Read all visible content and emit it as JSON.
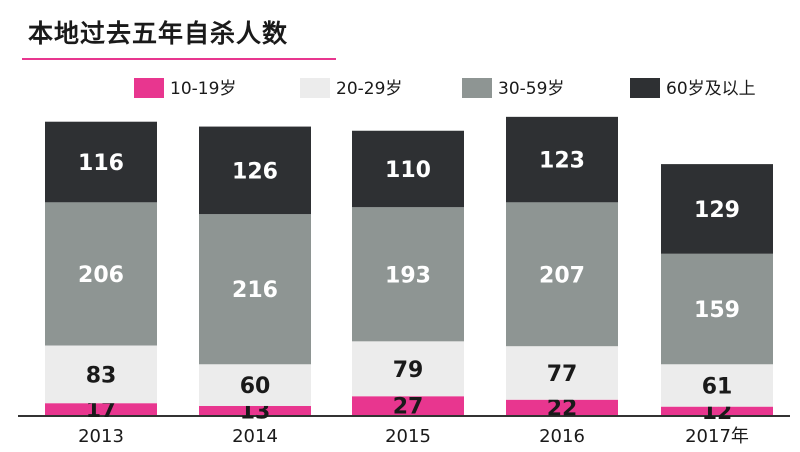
{
  "title": "本地过去五年自杀人数",
  "colors": {
    "accent_rule": "#e8368f",
    "axis": "#333333"
  },
  "chart_data": {
    "type": "bar",
    "stacked": true,
    "title": "本地过去五年自杀人数",
    "categories": [
      "2013",
      "2014",
      "2015",
      "2016",
      "2017年"
    ],
    "series": [
      {
        "name": "10-19岁",
        "color": "#e8368f",
        "label_color": "#1a1a1a",
        "values": [
          17,
          13,
          27,
          22,
          12
        ]
      },
      {
        "name": "20-29岁",
        "color": "#ececec",
        "label_color": "#1a1a1a",
        "values": [
          83,
          60,
          79,
          77,
          61
        ]
      },
      {
        "name": "30-59岁",
        "color": "#8e9593",
        "label_color": "#ffffff",
        "values": [
          206,
          216,
          193,
          207,
          159
        ]
      },
      {
        "name": "60岁及以上",
        "color": "#2e3033",
        "label_color": "#ffffff",
        "values": [
          116,
          126,
          110,
          123,
          129
        ]
      }
    ],
    "legend_position": "top",
    "grid": false
  }
}
